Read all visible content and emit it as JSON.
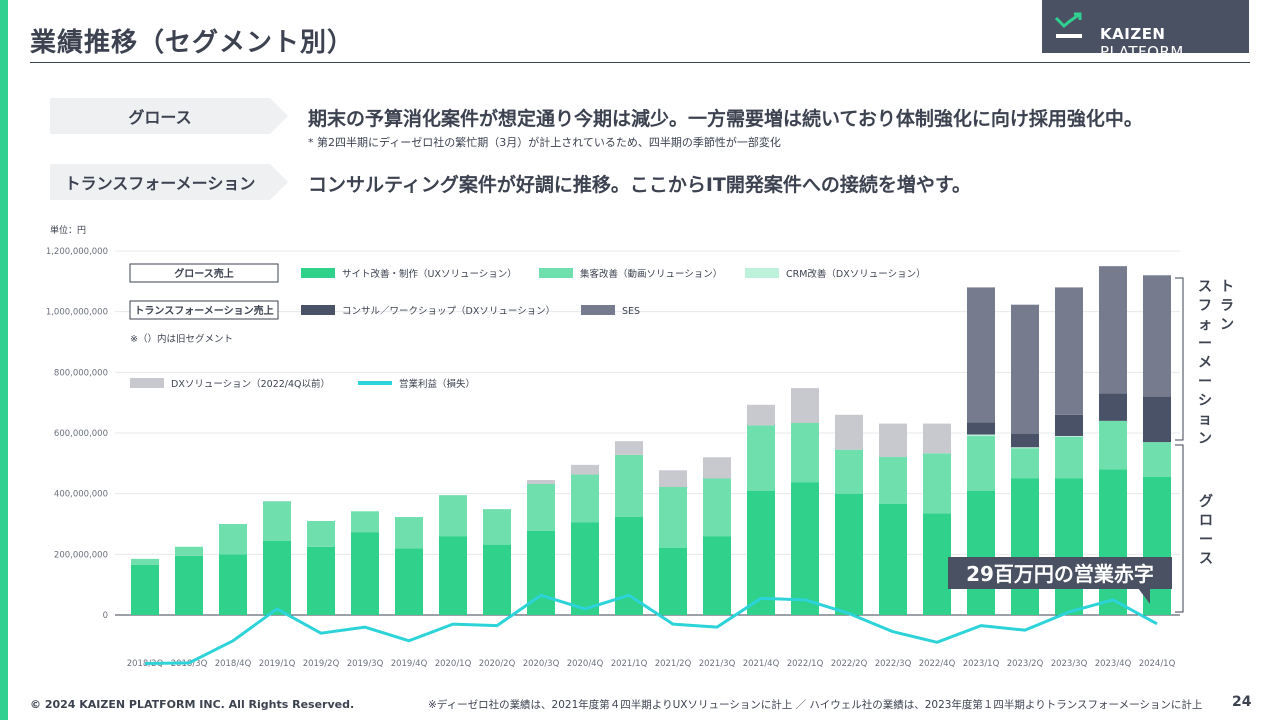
{
  "header": {
    "title": "業績推移（セグメント別）",
    "logo_text_bold": "KAIZEN",
    "logo_text": " PLATFORM",
    "logo_icon": "chart-arrow-icon"
  },
  "segments": [
    {
      "label": "グロース",
      "text": "期末の予算消化案件が想定通り今期は減少。一方需要増は続いており体制強化に向け採用強化中。",
      "note": "* 第2四半期にディーゼロ社の繁忙期（3月）が計上されているため、四半期の季節性が一部変化"
    },
    {
      "label": "トランスフォーメーション",
      "text": "コンサルティング案件が好調に推移。ここからIT開発案件への接続を増やす。"
    }
  ],
  "colors": {
    "site": "#2fd18b",
    "ad": "#6fdfae",
    "crm": "#bdf1db",
    "consult": "#4a5268",
    "ses": "#767c8e",
    "dx": "#c8c9ce",
    "line": "#2cd3d8",
    "accent": "#2fd090"
  },
  "chart_data": {
    "type": "bar",
    "stacked": true,
    "unit_label": "単位：円",
    "categories": [
      "2018/2Q",
      "2018/3Q",
      "2018/4Q",
      "2019/1Q",
      "2019/2Q",
      "2019/3Q",
      "2019/4Q",
      "2020/1Q",
      "2020/2Q",
      "2020/3Q",
      "2020/4Q",
      "2021/1Q",
      "2021/2Q",
      "2021/3Q",
      "2021/4Q",
      "2022/1Q",
      "2022/2Q",
      "2022/3Q",
      "2022/4Q",
      "2023/1Q",
      "2023/2Q",
      "2023/3Q",
      "2023/4Q",
      "2024/1Q"
    ],
    "ylim": [
      0,
      1200000000
    ],
    "yticks": [
      0,
      200000000,
      400000000,
      600000000,
      800000000,
      1000000000,
      1200000000
    ],
    "ytick_labels": [
      "0",
      "200,000,000",
      "400,000,000",
      "600,000,000",
      "800,000,000",
      "1,000,000,000",
      "1,200,000,000"
    ],
    "series": [
      {
        "name": "サイト改善・制作（UXソリューション）",
        "key": "site",
        "values": [
          165000000,
          195000000,
          200000000,
          245000000,
          225000000,
          272000000,
          220000000,
          260000000,
          232000000,
          277000000,
          305000000,
          323000000,
          222000000,
          260000000,
          410000000,
          438000000,
          400000000,
          366000000,
          335000000,
          410000000,
          450000000,
          450000000,
          480000000,
          455000000
        ]
      },
      {
        "name": "集客改善（動画ソリューション）",
        "key": "ad",
        "values": [
          20000000,
          30000000,
          100000000,
          130000000,
          85000000,
          70000000,
          103000000,
          135000000,
          117000000,
          155000000,
          158000000,
          205000000,
          200000000,
          190000000,
          215000000,
          195000000,
          145000000,
          155000000,
          198000000,
          180000000,
          100000000,
          137000000,
          160000000,
          115000000
        ]
      },
      {
        "name": "CRM改善（DXソリューション）",
        "key": "crm",
        "values": [
          0,
          0,
          0,
          0,
          0,
          0,
          0,
          0,
          0,
          0,
          0,
          0,
          0,
          0,
          0,
          0,
          0,
          0,
          0,
          5000000,
          3000000,
          3000000,
          0,
          0
        ]
      },
      {
        "name": "コンサル／ワークショップ（DXソリューション）",
        "key": "consult",
        "values": [
          0,
          0,
          0,
          0,
          0,
          0,
          0,
          0,
          0,
          0,
          0,
          0,
          0,
          0,
          0,
          0,
          0,
          0,
          0,
          40000000,
          45000000,
          70000000,
          90000000,
          150000000
        ]
      },
      {
        "name": "SES",
        "key": "ses",
        "values": [
          0,
          0,
          0,
          0,
          0,
          0,
          0,
          0,
          0,
          0,
          0,
          0,
          0,
          0,
          0,
          0,
          0,
          0,
          0,
          445000000,
          425000000,
          420000000,
          420000000,
          400000000
        ]
      },
      {
        "name": "DXソリューション（2022/4Q以前）",
        "key": "dx",
        "values": [
          0,
          0,
          0,
          0,
          0,
          0,
          0,
          0,
          0,
          13000000,
          32000000,
          45000000,
          55000000,
          70000000,
          68000000,
          115000000,
          115000000,
          110000000,
          98000000,
          0,
          0,
          0,
          0,
          0
        ]
      }
    ],
    "line_series": {
      "name": "営業利益（損失）",
      "key": "line",
      "values": [
        -160000000,
        -158000000,
        -85000000,
        20000000,
        -60000000,
        -40000000,
        -85000000,
        -30000000,
        -35000000,
        65000000,
        20000000,
        65000000,
        -30000000,
        -40000000,
        55000000,
        50000000,
        5000000,
        -55000000,
        -90000000,
        -35000000,
        -50000000,
        10000000,
        50000000,
        -29000000
      ]
    },
    "legend": {
      "growth_label": "グロース売上",
      "transform_label": "トランスフォーメーション売上",
      "old_segment_note": "※（）内は旧セグメント"
    },
    "bracket_labels": {
      "transform": "トランスフォーメーション",
      "growth": "グロース"
    },
    "annotation": "29百万円の営業赤字"
  },
  "footer": {
    "copyright": "© 2024 KAIZEN PLATFORM INC. All Rights Reserved.",
    "note": "※ディーゼロ社の業績は、2021年度第４四半期よりUXソリューションに計上 ／ ハイウェル社の業績は、2023年度第１四半期よりトランスフォーメーションに計上",
    "page_number": "24"
  }
}
